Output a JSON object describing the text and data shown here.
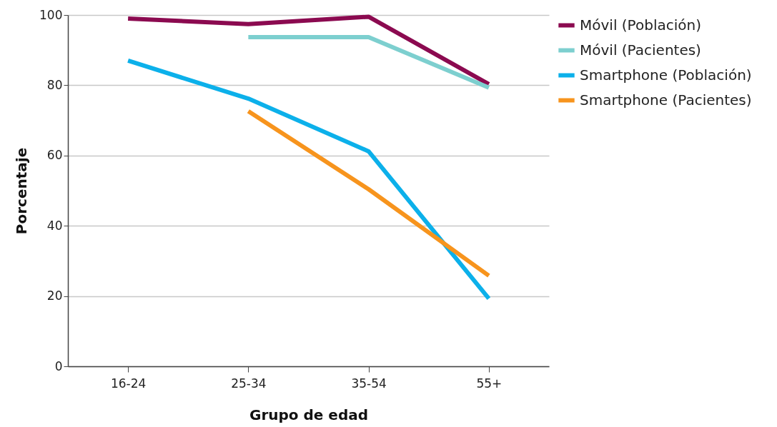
{
  "chart_data": {
    "type": "line",
    "xlabel": "Grupo de edad",
    "ylabel": "Porcentaje",
    "categories": [
      "16-24",
      "25-34",
      "35-54",
      "55+"
    ],
    "series": [
      {
        "name": "Móvil (Población)",
        "color": "#8b0a50",
        "values": [
          99,
          97.4,
          99.5,
          80.3
        ]
      },
      {
        "name": "Móvil (Pacientes)",
        "color": "#7dcfcf",
        "values": [
          null,
          93.7,
          93.7,
          79.3
        ]
      },
      {
        "name": "Smartphone (Población)",
        "color": "#0cb0ea",
        "values": [
          87,
          76.2,
          61.2,
          19.3
        ]
      },
      {
        "name": "Smartphone (Pacientes)",
        "color": "#f7941d",
        "values": [
          null,
          72.6,
          50.4,
          25.8
        ]
      }
    ],
    "ylim": [
      0,
      100
    ],
    "yticks": [
      0,
      20,
      40,
      60,
      80,
      100
    ],
    "grid": "y",
    "legend": "top right",
    "line_style": "solid",
    "marker": "none"
  }
}
